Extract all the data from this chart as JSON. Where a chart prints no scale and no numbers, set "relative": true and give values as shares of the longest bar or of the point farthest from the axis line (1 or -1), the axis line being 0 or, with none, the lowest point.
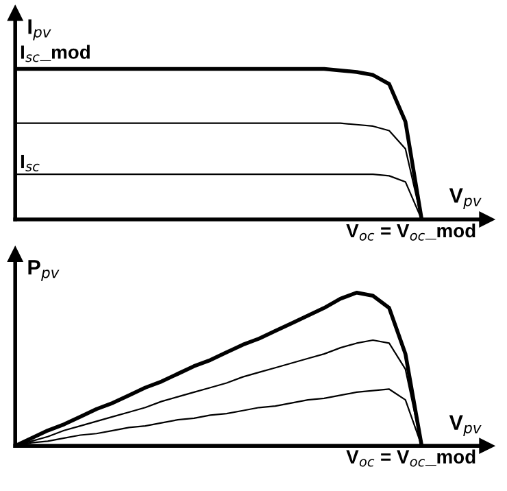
{
  "chart_data": [
    {
      "type": "line",
      "relative": true,
      "ylabel": "I$_{pv}$",
      "xlabel": "V$_{pv}$",
      "categories": [
        null,
        null,
        null,
        null,
        null,
        null,
        null,
        null,
        null,
        null,
        null,
        null,
        null,
        null,
        null,
        null,
        null,
        null,
        null,
        null,
        null,
        null,
        null,
        null,
        null,
        null,
        null,
        null,
        null,
        null
      ],
      "series": [
        {
          "color": "#000000",
          "values": [
            1,
            1,
            1,
            1,
            1,
            1,
            1,
            1,
            1,
            1,
            1,
            1,
            1,
            1,
            1,
            1,
            1,
            1,
            1,
            1,
            0.99,
            0.98,
            0.96,
            0.9,
            0.65,
            0,
            null,
            null,
            null,
            null
          ]
        },
        {
          "color": "#000000",
          "values": [
            0.64,
            0.64,
            0.64,
            0.64,
            0.64,
            0.64,
            0.64,
            0.64,
            0.64,
            0.64,
            0.64,
            0.64,
            0.64,
            0.64,
            0.64,
            0.64,
            0.64,
            0.64,
            0.64,
            0.64,
            0.64,
            0.63,
            0.62,
            0.59,
            0.47,
            0,
            null,
            null,
            null,
            null
          ]
        },
        {
          "color": "#000000",
          "values": [
            0.3,
            0.3,
            0.3,
            0.3,
            0.3,
            0.3,
            0.3,
            0.3,
            0.3,
            0.3,
            0.3,
            0.3,
            0.3,
            0.3,
            0.3,
            0.3,
            0.3,
            0.3,
            0.3,
            0.3,
            0.3,
            0.3,
            0.3,
            0.29,
            0.25,
            0,
            null,
            null,
            null,
            null
          ]
        }
      ],
      "annotations": [
        "I$_{sc}$_mod",
        "I$_{sc}$",
        "V$_{oc}$ = V$_{oc}$_mod"
      ]
    },
    {
      "type": "line",
      "relative": true,
      "ylabel": "P$_{pv}$",
      "xlabel": "V$_{pv}$",
      "categories": [
        null,
        null,
        null,
        null,
        null,
        null,
        null,
        null,
        null,
        null,
        null,
        null,
        null,
        null,
        null,
        null,
        null,
        null,
        null,
        null,
        null,
        null,
        null,
        null,
        null,
        null,
        null,
        null,
        null,
        null
      ],
      "series": [
        {
          "color": "#000000",
          "values": [
            0,
            0.05,
            0.1,
            0.14,
            0.19,
            0.24,
            0.28,
            0.33,
            0.38,
            0.42,
            0.47,
            0.52,
            0.56,
            0.61,
            0.66,
            0.7,
            0.75,
            0.8,
            0.85,
            0.9,
            0.96,
            1,
            0.98,
            0.9,
            0.6,
            0,
            null,
            null,
            null,
            null
          ]
        },
        {
          "color": "#000000",
          "values": [
            0,
            0.03,
            0.06,
            0.1,
            0.13,
            0.16,
            0.19,
            0.22,
            0.25,
            0.29,
            0.32,
            0.35,
            0.38,
            0.41,
            0.45,
            0.48,
            0.51,
            0.54,
            0.57,
            0.6,
            0.64,
            0.67,
            0.69,
            0.67,
            0.5,
            0,
            null,
            null,
            null,
            null
          ]
        },
        {
          "color": "#000000",
          "values": [
            0,
            0.02,
            0.03,
            0.05,
            0.07,
            0.08,
            0.1,
            0.12,
            0.13,
            0.15,
            0.17,
            0.18,
            0.2,
            0.21,
            0.23,
            0.25,
            0.26,
            0.28,
            0.3,
            0.31,
            0.33,
            0.35,
            0.36,
            0.37,
            0.3,
            0,
            null,
            null,
            null,
            null
          ]
        }
      ],
      "annotations": [
        "V$_{oc}$ = V$_{oc}$_mod"
      ]
    }
  ]
}
